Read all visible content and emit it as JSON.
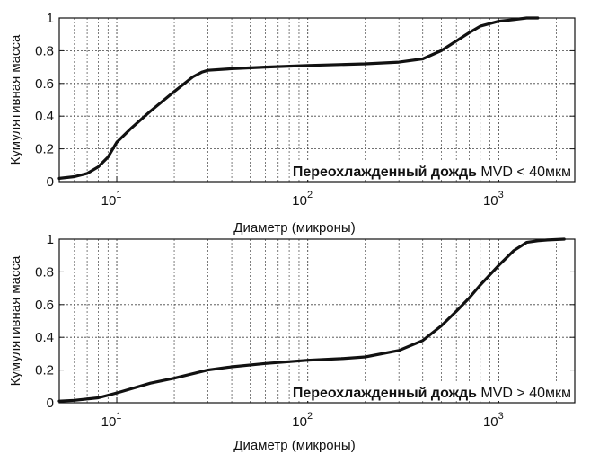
{
  "chart_data": [
    {
      "type": "line",
      "xscale": "log",
      "xlim": [
        5,
        2500
      ],
      "ylim": [
        0,
        1
      ],
      "xlabel": "Диаметр (микроны)",
      "ylabel": "Кумулятивная масса",
      "yticks": [
        "0",
        "0.2",
        "0.4",
        "0.6",
        "0.8",
        "1"
      ],
      "xticks": [
        {
          "base": "10",
          "exp": "1"
        },
        {
          "base": "10",
          "exp": "2"
        },
        {
          "base": "10",
          "exp": "3"
        }
      ],
      "annotation": {
        "bold": "Переохлажденный дождь",
        "rest": " MVD < 40мкм"
      },
      "series": [
        {
          "name": "Переохлажденный дождь MVD < 40мкм",
          "x": [
            5,
            6,
            7,
            8,
            9,
            10,
            12,
            15,
            20,
            25,
            28,
            30,
            40,
            60,
            100,
            200,
            300,
            400,
            500,
            600,
            700,
            800,
            1000,
            1200,
            1400,
            1600
          ],
          "y": [
            0.02,
            0.03,
            0.05,
            0.09,
            0.15,
            0.24,
            0.33,
            0.43,
            0.55,
            0.64,
            0.67,
            0.68,
            0.69,
            0.7,
            0.71,
            0.72,
            0.73,
            0.75,
            0.8,
            0.86,
            0.91,
            0.95,
            0.98,
            0.99,
            1.0,
            1.0
          ]
        }
      ]
    },
    {
      "type": "line",
      "xscale": "log",
      "xlim": [
        5,
        2500
      ],
      "ylim": [
        0,
        1
      ],
      "xlabel": "Диаметр (микроны)",
      "ylabel": "Кумулятивная масса",
      "yticks": [
        "0",
        "0.2",
        "0.4",
        "0.6",
        "0.8",
        "1"
      ],
      "xticks": [
        {
          "base": "10",
          "exp": "1"
        },
        {
          "base": "10",
          "exp": "2"
        },
        {
          "base": "10",
          "exp": "3"
        }
      ],
      "annotation": {
        "bold": "Переохлажденный дождь",
        "rest": " MVD > 40мкм"
      },
      "series": [
        {
          "name": "Переохлажденный дождь MVD > 40мкм",
          "x": [
            5,
            6,
            8,
            10,
            15,
            20,
            30,
            40,
            60,
            100,
            150,
            200,
            300,
            400,
            500,
            600,
            700,
            800,
            1000,
            1200,
            1400,
            1600,
            1800,
            2200
          ],
          "y": [
            0.01,
            0.015,
            0.03,
            0.06,
            0.12,
            0.15,
            0.2,
            0.22,
            0.24,
            0.26,
            0.27,
            0.28,
            0.32,
            0.38,
            0.47,
            0.56,
            0.64,
            0.72,
            0.84,
            0.93,
            0.98,
            0.99,
            0.995,
            1.0
          ]
        }
      ]
    }
  ]
}
